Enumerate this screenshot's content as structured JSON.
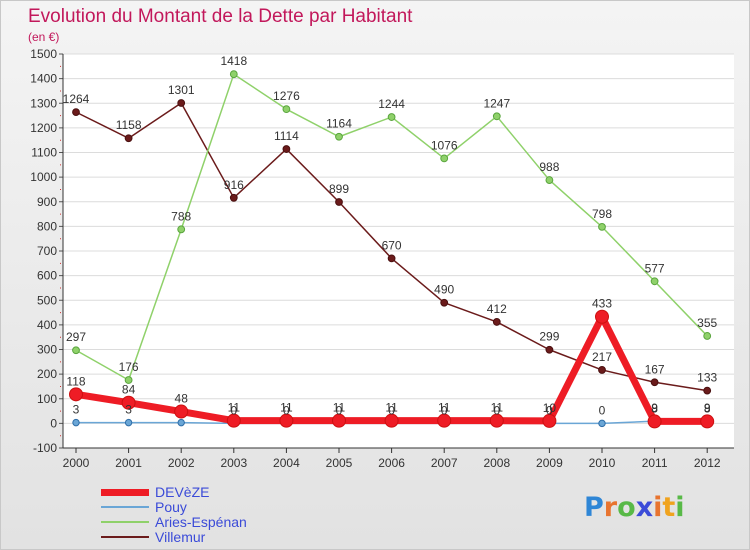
{
  "title": "Evolution du Montant de la Dette par Habitant",
  "subtitle": "(en €)",
  "logo": {
    "letters": [
      "P",
      "r",
      "o",
      "x",
      "i",
      "t",
      "i"
    ],
    "colors": [
      "#2f86d6",
      "#e8742f",
      "#58b947",
      "#3b4bd8",
      "#e8742f",
      "#f0a31e",
      "#58b947"
    ]
  },
  "chart_data": {
    "type": "line",
    "x": [
      "2000",
      "2001",
      "2002",
      "2003",
      "2004",
      "2005",
      "2006",
      "2007",
      "2008",
      "2009",
      "2010",
      "2011",
      "2012"
    ],
    "ylim": [
      -100,
      1500
    ],
    "yticks": [
      -100,
      0,
      100,
      200,
      300,
      400,
      500,
      600,
      700,
      800,
      900,
      1000,
      1100,
      1200,
      1300,
      1400,
      1500
    ],
    "grid": "horizontal",
    "legend_position": "bottom-left",
    "series": [
      {
        "name": "Villemur",
        "color": "#6b1b1b",
        "values": [
          1264,
          1158,
          1301,
          916,
          1114,
          899,
          670,
          490,
          412,
          299,
          217,
          167,
          133
        ],
        "labels": [
          "1264",
          "1158",
          "1301",
          "916",
          "1114",
          "899",
          "670",
          "490",
          "412",
          "299",
          "217",
          "167",
          "133"
        ]
      },
      {
        "name": "Aries-Espénan",
        "color": "#8fd16a",
        "values": [
          297,
          176,
          788,
          1418,
          1276,
          1164,
          1244,
          1076,
          1247,
          988,
          798,
          577,
          355
        ],
        "labels": [
          "297",
          "176",
          "788",
          "1418",
          "1276",
          "1164",
          "1244",
          "1076",
          "1247",
          "988",
          "798",
          "577",
          "355"
        ]
      },
      {
        "name": "Pouy",
        "color": "#6aa6d6",
        "values": [
          3,
          3,
          3,
          0,
          0,
          0,
          0,
          0,
          0,
          0,
          0,
          9,
          9
        ],
        "labels": [
          "3",
          "3",
          "",
          "0",
          "0",
          "0",
          "0",
          "0",
          "0",
          "0",
          "0",
          "9",
          "9"
        ]
      },
      {
        "name": "DEVèZE",
        "color": "#ee1c25",
        "values": [
          118,
          84,
          48,
          11,
          11,
          11,
          11,
          11,
          11,
          10,
          433,
          8,
          8
        ],
        "labels": [
          "118",
          "84",
          "48",
          "11",
          "11",
          "11",
          "11",
          "11",
          "11",
          "10",
          "433",
          "8",
          "8"
        ]
      }
    ],
    "legend": [
      "DEVèZE",
      "Pouy",
      "Aries-Espénan",
      "Villemur"
    ]
  }
}
